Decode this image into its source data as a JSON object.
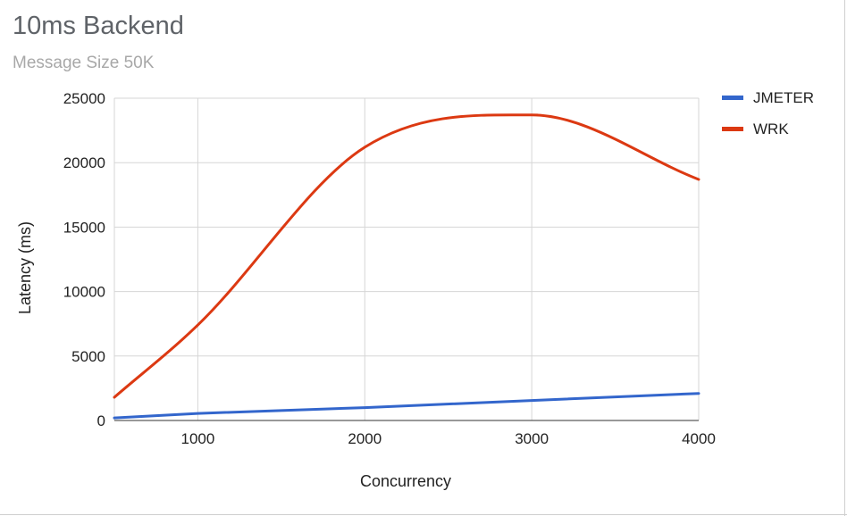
{
  "chart_data": {
    "type": "line",
    "title": "10ms Backend",
    "subtitle": "Message Size 50K",
    "xlabel": "Concurrency",
    "ylabel": "Latency (ms)",
    "xlim": [
      500,
      4000
    ],
    "ylim": [
      0,
      25000
    ],
    "x_ticks": [
      1000,
      2000,
      3000,
      4000
    ],
    "y_ticks": [
      0,
      5000,
      10000,
      15000,
      20000,
      25000
    ],
    "grid": true,
    "legend": "right",
    "series": [
      {
        "name": "JMETER",
        "color": "#3366cc",
        "x": [
          500,
          1000,
          2000,
          3000,
          4000
        ],
        "values": [
          200,
          550,
          1000,
          1550,
          2100
        ]
      },
      {
        "name": "WRK",
        "color": "#dc3912",
        "x": [
          500,
          1000,
          2000,
          3000,
          4000
        ],
        "values": [
          1800,
          7400,
          21200,
          23700,
          18700
        ]
      }
    ]
  }
}
